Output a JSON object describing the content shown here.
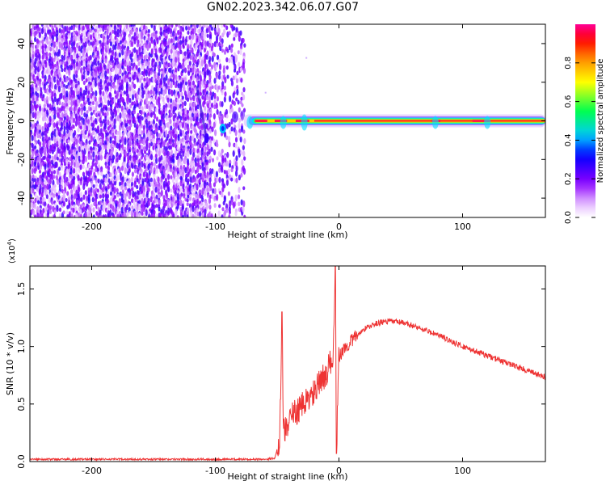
{
  "title": "GN02.2023.342.06.07.G07",
  "chart_data": [
    {
      "type": "heatmap",
      "xlabel": "Height of straight line (km)",
      "ylabel": "Frequency (Hz)",
      "xlim": [
        -250,
        167
      ],
      "ylim": [
        -50,
        50
      ],
      "x_ticks": [
        -200,
        -100,
        0,
        100
      ],
      "y_ticks": [
        -40,
        -20,
        0,
        20,
        40
      ],
      "colorbar": {
        "label": "Normalized spectral amplitude",
        "range": [
          0.0,
          1.0
        ],
        "ticks": [
          "0.0",
          "0.2",
          "0.4",
          "0.6",
          "0.8"
        ],
        "tick_values": [
          0.0,
          0.2,
          0.4,
          0.6,
          0.8
        ]
      },
      "regions": [
        {
          "description": "broadband purple noise",
          "x_range": [
            -250,
            -77
          ],
          "freq_range": [
            -50,
            50
          ],
          "amplitude": 0.15
        },
        {
          "description": "narrow carrier band",
          "x_range": [
            -77,
            167
          ],
          "center_freq": 0,
          "amplitude_peak": 1.0
        }
      ],
      "grid": false
    },
    {
      "type": "line",
      "xlabel": "Height of straight line (km)",
      "ylabel": "SNR (10 * v/v)",
      "y_multiplier": "(x10",
      "y_multiplier_exp": "4",
      "xlim": [
        -250,
        167
      ],
      "ylim": [
        0,
        1.7
      ],
      "x_ticks": [
        -200,
        -100,
        0,
        100
      ],
      "y_ticks": [
        "0.0",
        "0.5",
        "1.0",
        "1.5"
      ],
      "y_tick_values": [
        0.0,
        0.5,
        1.0,
        1.5
      ],
      "color": "#ee3333",
      "series": [
        {
          "x": [
            -250,
            -200,
            -150,
            -100,
            -80,
            -75,
            -60,
            -52,
            -48,
            -46,
            -45,
            -44,
            -40,
            -30,
            -20,
            -10,
            -5,
            -3,
            -2,
            0,
            10,
            20,
            30,
            40,
            50,
            60,
            70,
            80,
            90,
            100,
            110,
            120,
            130,
            140,
            150,
            160,
            167
          ],
          "y": [
            0.02,
            0.02,
            0.02,
            0.02,
            0.02,
            0.02,
            0.02,
            0.03,
            0.18,
            1.3,
            0.3,
            0.25,
            0.38,
            0.48,
            0.6,
            0.78,
            0.9,
            1.7,
            0.07,
            0.92,
            1.05,
            1.15,
            1.2,
            1.22,
            1.21,
            1.18,
            1.14,
            1.1,
            1.05,
            1.0,
            0.96,
            0.92,
            0.88,
            0.84,
            0.8,
            0.76,
            0.73
          ]
        }
      ],
      "grid": false
    }
  ]
}
